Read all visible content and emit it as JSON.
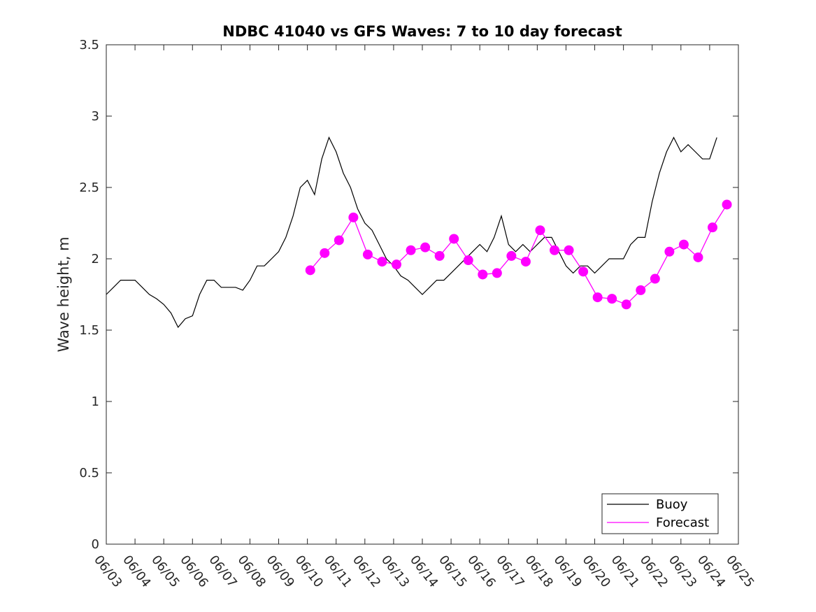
{
  "chart_data": {
    "type": "line",
    "title": "NDBC 41040 vs GFS Waves: 7 to 10 day forecast",
    "xlabel": "",
    "ylabel": "Wave height, m",
    "xlim": [
      "06/03",
      "06/25"
    ],
    "ylim": [
      0,
      3.5
    ],
    "x_tick_labels": [
      "06/03",
      "06/04",
      "06/05",
      "06/06",
      "06/07",
      "06/08",
      "06/09",
      "06/10",
      "06/11",
      "06/12",
      "06/13",
      "06/14",
      "06/15",
      "06/16",
      "06/17",
      "06/18",
      "06/19",
      "06/20",
      "06/21",
      "06/22",
      "06/23",
      "06/24",
      "06/25"
    ],
    "y_ticks": [
      0,
      0.5,
      1,
      1.5,
      2,
      2.5,
      3,
      3.5
    ],
    "y_tick_labels": [
      "0",
      "0.5",
      "1",
      "1.5",
      "2",
      "2.5",
      "3",
      "3.5"
    ],
    "grid": false,
    "legend_position": "bottom-right",
    "colors": {
      "buoy": "#000000",
      "forecast": "#ff00ff",
      "axis": "#262626"
    },
    "series": [
      {
        "name": "Buoy",
        "style": "line",
        "x": [
          0.0,
          0.25,
          0.5,
          0.75,
          1.0,
          1.25,
          1.5,
          1.75,
          2.0,
          2.25,
          2.5,
          2.75,
          3.0,
          3.25,
          3.5,
          3.75,
          4.0,
          4.25,
          4.5,
          4.75,
          5.0,
          5.25,
          5.5,
          5.75,
          6.0,
          6.25,
          6.5,
          6.75,
          7.0,
          7.25,
          7.5,
          7.75,
          8.0,
          8.25,
          8.5,
          8.75,
          9.0,
          9.25,
          9.5,
          9.75,
          10.0,
          10.25,
          10.5,
          10.75,
          11.0,
          11.25,
          11.5,
          11.75,
          12.0,
          12.25,
          12.5,
          12.75,
          13.0,
          13.25,
          13.5,
          13.75,
          14.0,
          14.25,
          14.5,
          14.75,
          15.0,
          15.25,
          15.5,
          15.75,
          16.0,
          16.25,
          16.5,
          16.75,
          17.0,
          17.25,
          17.5,
          17.75,
          18.0,
          18.25,
          18.5,
          18.75,
          19.0,
          19.25,
          19.5,
          19.75,
          20.0,
          20.25,
          20.5,
          20.75,
          21.0,
          21.25
        ],
        "y": [
          1.75,
          1.8,
          1.85,
          1.85,
          1.85,
          1.8,
          1.75,
          1.72,
          1.68,
          1.62,
          1.52,
          1.58,
          1.6,
          1.75,
          1.85,
          1.85,
          1.8,
          1.8,
          1.8,
          1.78,
          1.85,
          1.95,
          1.95,
          2.0,
          2.05,
          2.15,
          2.3,
          2.5,
          2.55,
          2.45,
          2.7,
          2.85,
          2.75,
          2.6,
          2.5,
          2.35,
          2.25,
          2.2,
          2.1,
          2.0,
          1.95,
          1.88,
          1.85,
          1.8,
          1.75,
          1.8,
          1.85,
          1.85,
          1.9,
          1.95,
          2.0,
          2.05,
          2.1,
          2.05,
          2.15,
          2.3,
          2.1,
          2.05,
          2.1,
          2.05,
          2.1,
          2.15,
          2.15,
          2.05,
          1.95,
          1.9,
          1.95,
          1.95,
          1.9,
          1.95,
          2.0,
          2.0,
          2.0,
          2.1,
          2.15,
          2.15,
          2.4,
          2.6,
          2.75,
          2.85,
          2.75,
          2.8,
          2.75,
          2.7,
          2.7,
          2.85
        ]
      },
      {
        "name": "Forecast",
        "style": "line+markers",
        "x": [
          7.1,
          7.6,
          8.1,
          8.6,
          9.1,
          9.6,
          10.1,
          10.6,
          11.1,
          11.6,
          12.1,
          12.6,
          13.1,
          13.6,
          14.1,
          14.6,
          15.1,
          15.6,
          16.1,
          16.6,
          17.1,
          17.6,
          18.1,
          18.6,
          19.1,
          19.6,
          20.1,
          20.6,
          21.1,
          21.6
        ],
        "y": [
          1.92,
          2.04,
          2.13,
          2.29,
          2.03,
          1.98,
          1.96,
          2.06,
          2.08,
          2.02,
          2.14,
          1.99,
          1.89,
          1.9,
          2.02,
          1.98,
          2.2,
          2.06,
          2.06,
          1.91,
          1.73,
          1.72,
          1.68,
          1.78,
          1.86,
          2.05,
          2.1,
          2.01,
          2.22,
          2.38
        ]
      }
    ]
  },
  "legend": {
    "entries": [
      {
        "label": "Buoy",
        "color": "#000000"
      },
      {
        "label": "Forecast",
        "color": "#ff00ff"
      }
    ]
  }
}
